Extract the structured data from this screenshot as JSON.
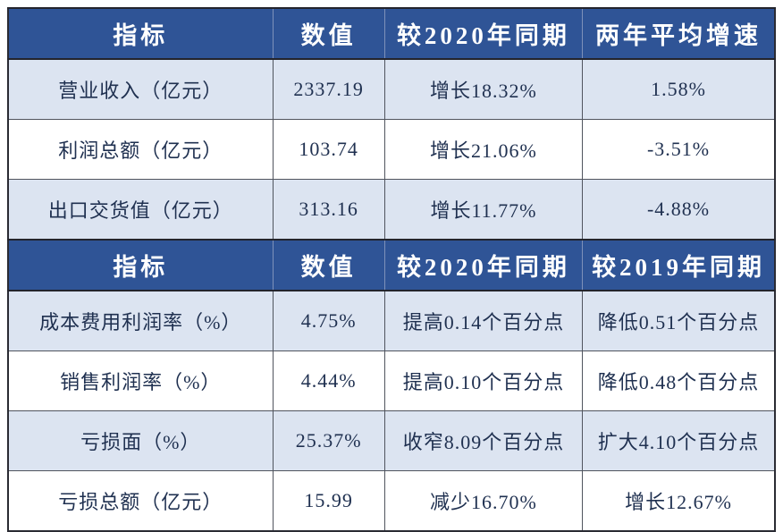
{
  "chart_data": [
    {
      "type": "table",
      "title": "",
      "headers": [
        "指标",
        "数值",
        "较2020年同期",
        "两年平均增速"
      ],
      "rows": [
        [
          "营业收入（亿元）",
          "2337.19",
          "增长18.32%",
          "1.58%"
        ],
        [
          "利润总额（亿元）",
          "103.74",
          "增长21.06%",
          "-3.51%"
        ],
        [
          "出口交货值（亿元）",
          "313.16",
          "增长11.77%",
          "-4.88%"
        ]
      ]
    },
    {
      "type": "table",
      "title": "",
      "headers": [
        "指标",
        "数值",
        "较2020年同期",
        "较2019年同期"
      ],
      "rows": [
        [
          "成本费用利润率（%）",
          "4.75%",
          "提高0.14个百分点",
          "降低0.51个百分点"
        ],
        [
          "销售利润率（%）",
          "4.44%",
          "提高0.10个百分点",
          "降低0.48个百分点"
        ],
        [
          "亏损面（%）",
          "25.37%",
          "收窄8.09个百分点",
          "扩大4.10个百分点"
        ],
        [
          "亏损总额（亿元）",
          "15.99",
          "减少16.70%",
          "增长12.67%"
        ]
      ]
    }
  ],
  "colors": {
    "header_bg": "#2F5496",
    "header_text": "#FFFFFF",
    "band_row_bg": "#DCE4F1",
    "plain_row_bg": "#FFFFFF",
    "body_text": "#1F3050",
    "outer_border": "#2A2B33",
    "inner_border": "#50545E",
    "header_divider": "#7E91BA"
  }
}
